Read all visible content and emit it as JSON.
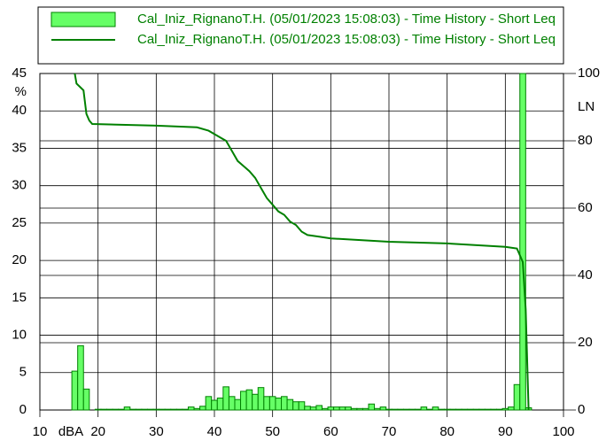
{
  "chart_data": {
    "type": "histogram",
    "xlabel": "dBA",
    "ylabel": "%",
    "y2label": "LN",
    "bins": [
      15.5,
      16.5,
      17.5,
      18.5,
      19.5,
      20.5,
      21.5,
      22.5,
      23.5,
      24.5,
      25.5,
      26.5,
      27.5,
      28.5,
      29.5,
      30.5,
      31.5,
      32.5,
      33.5,
      34.5,
      35.5,
      36.5,
      37.5,
      38.5,
      39.5,
      40.5,
      41.5,
      42.5,
      43.5,
      44.5,
      45.5,
      46.5,
      47.5,
      48.5,
      49.5,
      50.5,
      51.5,
      52.5,
      53.5,
      54.5,
      55.5,
      56.5,
      57.5,
      58.5,
      59.5,
      60.5,
      61.5,
      62.5,
      63.5,
      64.5,
      65.5,
      66.5,
      67.5,
      68.5,
      69.5,
      70.5,
      71.5,
      72.5,
      73.5,
      74.5,
      75.5,
      76.5,
      77.5,
      78.5,
      79.5,
      80.5,
      81.5,
      82.5,
      83.5,
      84.5,
      85.5,
      86.5,
      87.5,
      88.5,
      89.5,
      90.5,
      91.5,
      92.5,
      93.5,
      94.5
    ],
    "series": [
      {
        "name": "Cal_Iniz_RignanoT.H. (05/01/2023 15:08:03) - Time History - Short Leq",
        "color": "#66ff66",
        "edge_color": "#008000",
        "values": [
          5.2,
          8.6,
          2.8,
          0,
          0.1,
          0.1,
          0.1,
          0.1,
          0.1,
          0.4,
          0.1,
          0.1,
          0.1,
          0.1,
          0.1,
          0.1,
          0.1,
          0.1,
          0.1,
          0.1,
          0.4,
          0.2,
          0.5,
          1.8,
          1.3,
          1.6,
          3.1,
          1.8,
          1.4,
          2.5,
          2.7,
          2.1,
          3.0,
          1.8,
          1.8,
          1.6,
          1.8,
          1.4,
          1.1,
          1.1,
          0.5,
          0.4,
          0.6,
          0.2,
          0.4,
          0.4,
          0.4,
          0.4,
          0.2,
          0.2,
          0.2,
          0.8,
          0.2,
          0.4,
          0.1,
          0.1,
          0.1,
          0.1,
          0.1,
          0.1,
          0.4,
          0.1,
          0.4,
          0.1,
          0.1,
          0.1,
          0.1,
          0.1,
          0.1,
          0.1,
          0.1,
          0.1,
          0.1,
          0.1,
          0.2,
          0.4,
          3.4,
          45,
          0.3
        ]
      },
      {
        "name": "Cal_Iniz_RignanoT.H. (05/01/2023 15:08:03) - Time History - Short Leq",
        "color": "#008000",
        "axis": "y2",
        "x": [
          16,
          16.3,
          17.5,
          18,
          18.5,
          19,
          30,
          37,
          39,
          41,
          42,
          43,
          44,
          45,
          46,
          47,
          48,
          49,
          50,
          51,
          52,
          53,
          54,
          55,
          56,
          58,
          60,
          70,
          80,
          90,
          92,
          93,
          93.5,
          94
        ],
        "values": [
          100,
          97,
          95,
          88,
          86,
          85,
          84.5,
          84,
          83,
          81,
          80,
          77,
          74,
          72.5,
          71,
          69,
          66,
          63,
          61,
          59,
          58,
          56,
          55,
          53,
          52,
          51.5,
          51,
          50,
          49.5,
          48.5,
          48,
          44,
          30,
          0
        ]
      }
    ],
    "xlim": [
      10,
      100
    ],
    "xticks": [
      10,
      20,
      30,
      40,
      50,
      60,
      70,
      80,
      90,
      100
    ],
    "ylim": [
      0,
      45
    ],
    "yticks": [
      0,
      5,
      10,
      15,
      20,
      25,
      30,
      35,
      40,
      45
    ],
    "y2lim": [
      0,
      100
    ],
    "y2ticks": [
      0,
      20,
      40,
      60,
      80,
      100
    ],
    "grid": true
  }
}
